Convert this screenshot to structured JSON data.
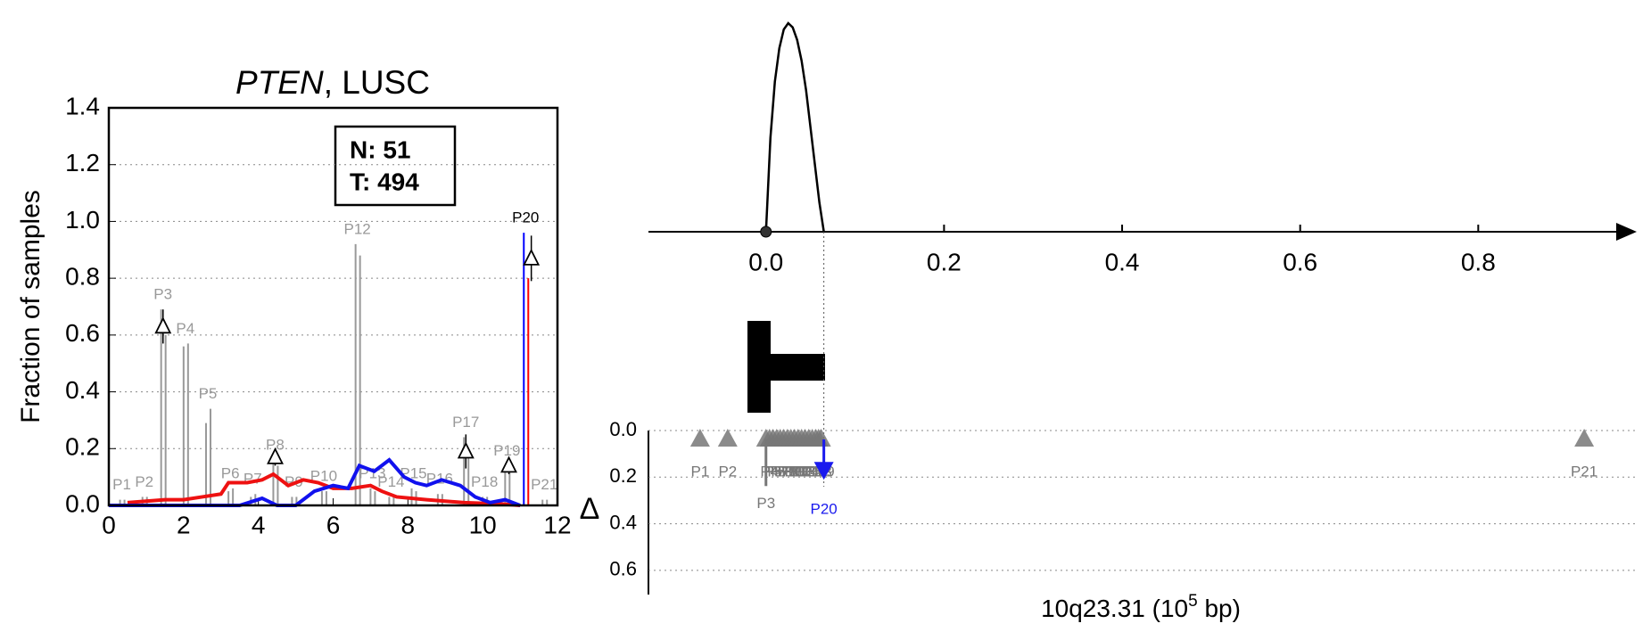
{
  "chart_data": [
    {
      "type": "line",
      "title_gene": "PTEN",
      "title_rest": ", LUSC",
      "ylabel": "Fraction of samples",
      "xlim": [
        0,
        12
      ],
      "ylim": [
        0,
        1.4
      ],
      "xticks": [
        0,
        2,
        4,
        6,
        8,
        10,
        12
      ],
      "yticks": [
        {
          "value": 0,
          "label": "0.0"
        },
        0.2,
        0.4,
        0.6,
        0.8,
        {
          "value": 1,
          "label": "1.0"
        },
        1.2,
        1.4
      ],
      "grid": true,
      "box_text": [
        "N: 51",
        "T: 494"
      ],
      "series": [
        {
          "color": "#ee1111",
          "x": [
            0.5,
            1,
            1.5,
            2,
            2.5,
            3,
            3.2,
            3.7,
            4.1,
            4.4,
            4.8,
            5.2,
            5.6,
            6,
            6.5,
            7,
            7.3,
            7.7,
            8.5,
            9.5,
            10.5,
            11
          ],
          "values": [
            0.01,
            0.015,
            0.02,
            0.02,
            0.03,
            0.04,
            0.08,
            0.08,
            0.09,
            0.11,
            0.07,
            0.09,
            0.08,
            0.06,
            0.06,
            0.07,
            0.05,
            0.03,
            0.02,
            0.01,
            0.005,
            0
          ]
        },
        {
          "color": "#1111ee",
          "x": [
            0,
            3.5,
            4.1,
            4.5,
            5,
            5.5,
            6,
            6.4,
            6.7,
            7.1,
            7.5,
            7.9,
            8.2,
            8.5,
            8.9,
            9.4,
            9.8,
            10.2,
            10.6,
            11
          ],
          "values": [
            0,
            0,
            0.025,
            0,
            0,
            0.05,
            0.07,
            0.06,
            0.14,
            0.12,
            0.16,
            0.1,
            0.08,
            0.07,
            0.09,
            0.07,
            0.03,
            0.01,
            0.02,
            0
          ]
        }
      ],
      "peaks": {
        "labels": [
          "P1",
          "P2",
          "P3",
          "P4",
          "P5",
          "P6",
          "P7",
          "P8",
          "P9",
          "P10",
          "P12",
          "P13",
          "P14",
          "P15",
          "P16",
          "P17",
          "P18",
          "P19",
          "P20",
          "P21"
        ],
        "x": [
          0.3,
          0.9,
          1.4,
          2.0,
          2.6,
          3.2,
          3.8,
          4.4,
          4.9,
          5.7,
          6.6,
          7.0,
          7.5,
          8.1,
          8.8,
          9.5,
          10.0,
          10.6,
          11.1,
          11.6
        ],
        "normal": [
          0.02,
          0.03,
          0.69,
          0.56,
          0.29,
          0.05,
          0.03,
          0.16,
          0.03,
          0.05,
          0.92,
          0.06,
          0.03,
          0.06,
          0.04,
          0.24,
          0.03,
          0.14,
          0.96,
          0.02
        ],
        "tumor": [
          0.02,
          0.03,
          0.6,
          0.57,
          0.34,
          0.06,
          0.04,
          0.14,
          0.03,
          0.05,
          0.88,
          0.05,
          0.03,
          0.05,
          0.04,
          0.2,
          0.03,
          0.12,
          0.8,
          0.02
        ],
        "color": "#999999",
        "highlight": "P20",
        "highlight_colors": [
          "#0000ff",
          "#ff0000"
        ]
      },
      "deltas": {
        "x": [
          1.45,
          4.45,
          9.55,
          10.7,
          11.3
        ],
        "values": [
          0.63,
          0.17,
          0.19,
          0.14,
          0.87
        ],
        "errors": [
          0.06,
          0.03,
          0.06,
          0.03,
          0.08
        ]
      }
    },
    {
      "type": "density",
      "xlim": [
        -0.132,
        0.976
      ],
      "xticks": [
        {
          "value": 0,
          "label": "0.0"
        },
        0.2,
        0.4,
        0.6,
        0.8
      ],
      "x": [
        0,
        0.005,
        0.01,
        0.015,
        0.02,
        0.025,
        0.03,
        0.035,
        0.04,
        0.045,
        0.05,
        0.055,
        0.06,
        0.065
      ],
      "values": [
        0,
        0.45,
        0.72,
        0.88,
        0.97,
        1.0,
        0.98,
        0.92,
        0.82,
        0.68,
        0.5,
        0.32,
        0.14,
        0
      ],
      "cutoff": 0.065,
      "ylabel": "Δ",
      "ylim": [
        0,
        0.7
      ],
      "yticks": [
        {
          "value": 0,
          "label": "0.0"
        },
        0.2,
        0.4,
        0.6
      ],
      "xlabel_main": "10q23.31 (10",
      "xlabel_sup": "5",
      "xlabel_end": " bp)",
      "points": {
        "labels": [
          "P1",
          "P2",
          "P3",
          "P4",
          "P5",
          "P6",
          "P7",
          "P8",
          "P9",
          "P10",
          "P11",
          "P12",
          "P13",
          "P14",
          "P15",
          "P16",
          "P17",
          "P18",
          "P19",
          "P20",
          "P21"
        ],
        "x": [
          -0.074,
          -0.043,
          0.0,
          0.004,
          0.008,
          0.012,
          0.016,
          0.02,
          0.024,
          0.028,
          0.032,
          0.036,
          0.04,
          0.044,
          0.048,
          0.052,
          0.056,
          0.059,
          0.062,
          0.065,
          0.919
        ],
        "values": [
          0,
          0,
          0.2,
          0,
          0,
          0,
          0,
          0.02,
          0,
          0,
          0,
          0,
          0,
          0,
          0,
          0,
          0.02,
          0,
          0.01,
          0.15,
          0
        ],
        "color": "#777777",
        "highlight": "P20",
        "highlight_color": "#1a1aee"
      }
    }
  ]
}
